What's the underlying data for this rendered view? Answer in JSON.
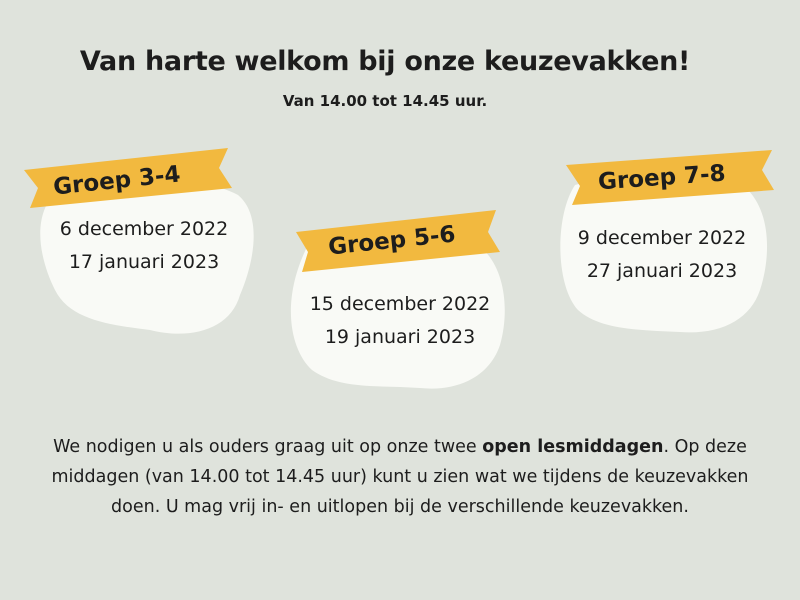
{
  "header": {
    "title": "Van harte welkom bij onze keuzevakken!",
    "subtitle": "Van 14.00 tot 14.45 uur."
  },
  "groups": [
    {
      "label": "Groep 3-4",
      "dates": [
        "6 december 2022",
        "17 januari 2023"
      ]
    },
    {
      "label": "Groep 5-6",
      "dates": [
        "15 december 2022",
        "19 januari 2023"
      ]
    },
    {
      "label": "Groep 7-8",
      "dates": [
        "9 december 2022",
        "27 januari 2023"
      ]
    }
  ],
  "intro": {
    "part1": "We nodigen u als ouders graag uit op onze twee ",
    "bold": "open lesmiddagen",
    "part2": ". Op deze middagen (van 14.00 tot 14.45 uur) kunt u zien wat we tijdens de keuzevakken doen. U mag vrij in- en uitlopen bij de verschillende keuzevakken."
  },
  "colors": {
    "background": "#dfe3dc",
    "blob": "#f9faf6",
    "tape": "#f2b93f",
    "text": "#1d1d1d"
  }
}
